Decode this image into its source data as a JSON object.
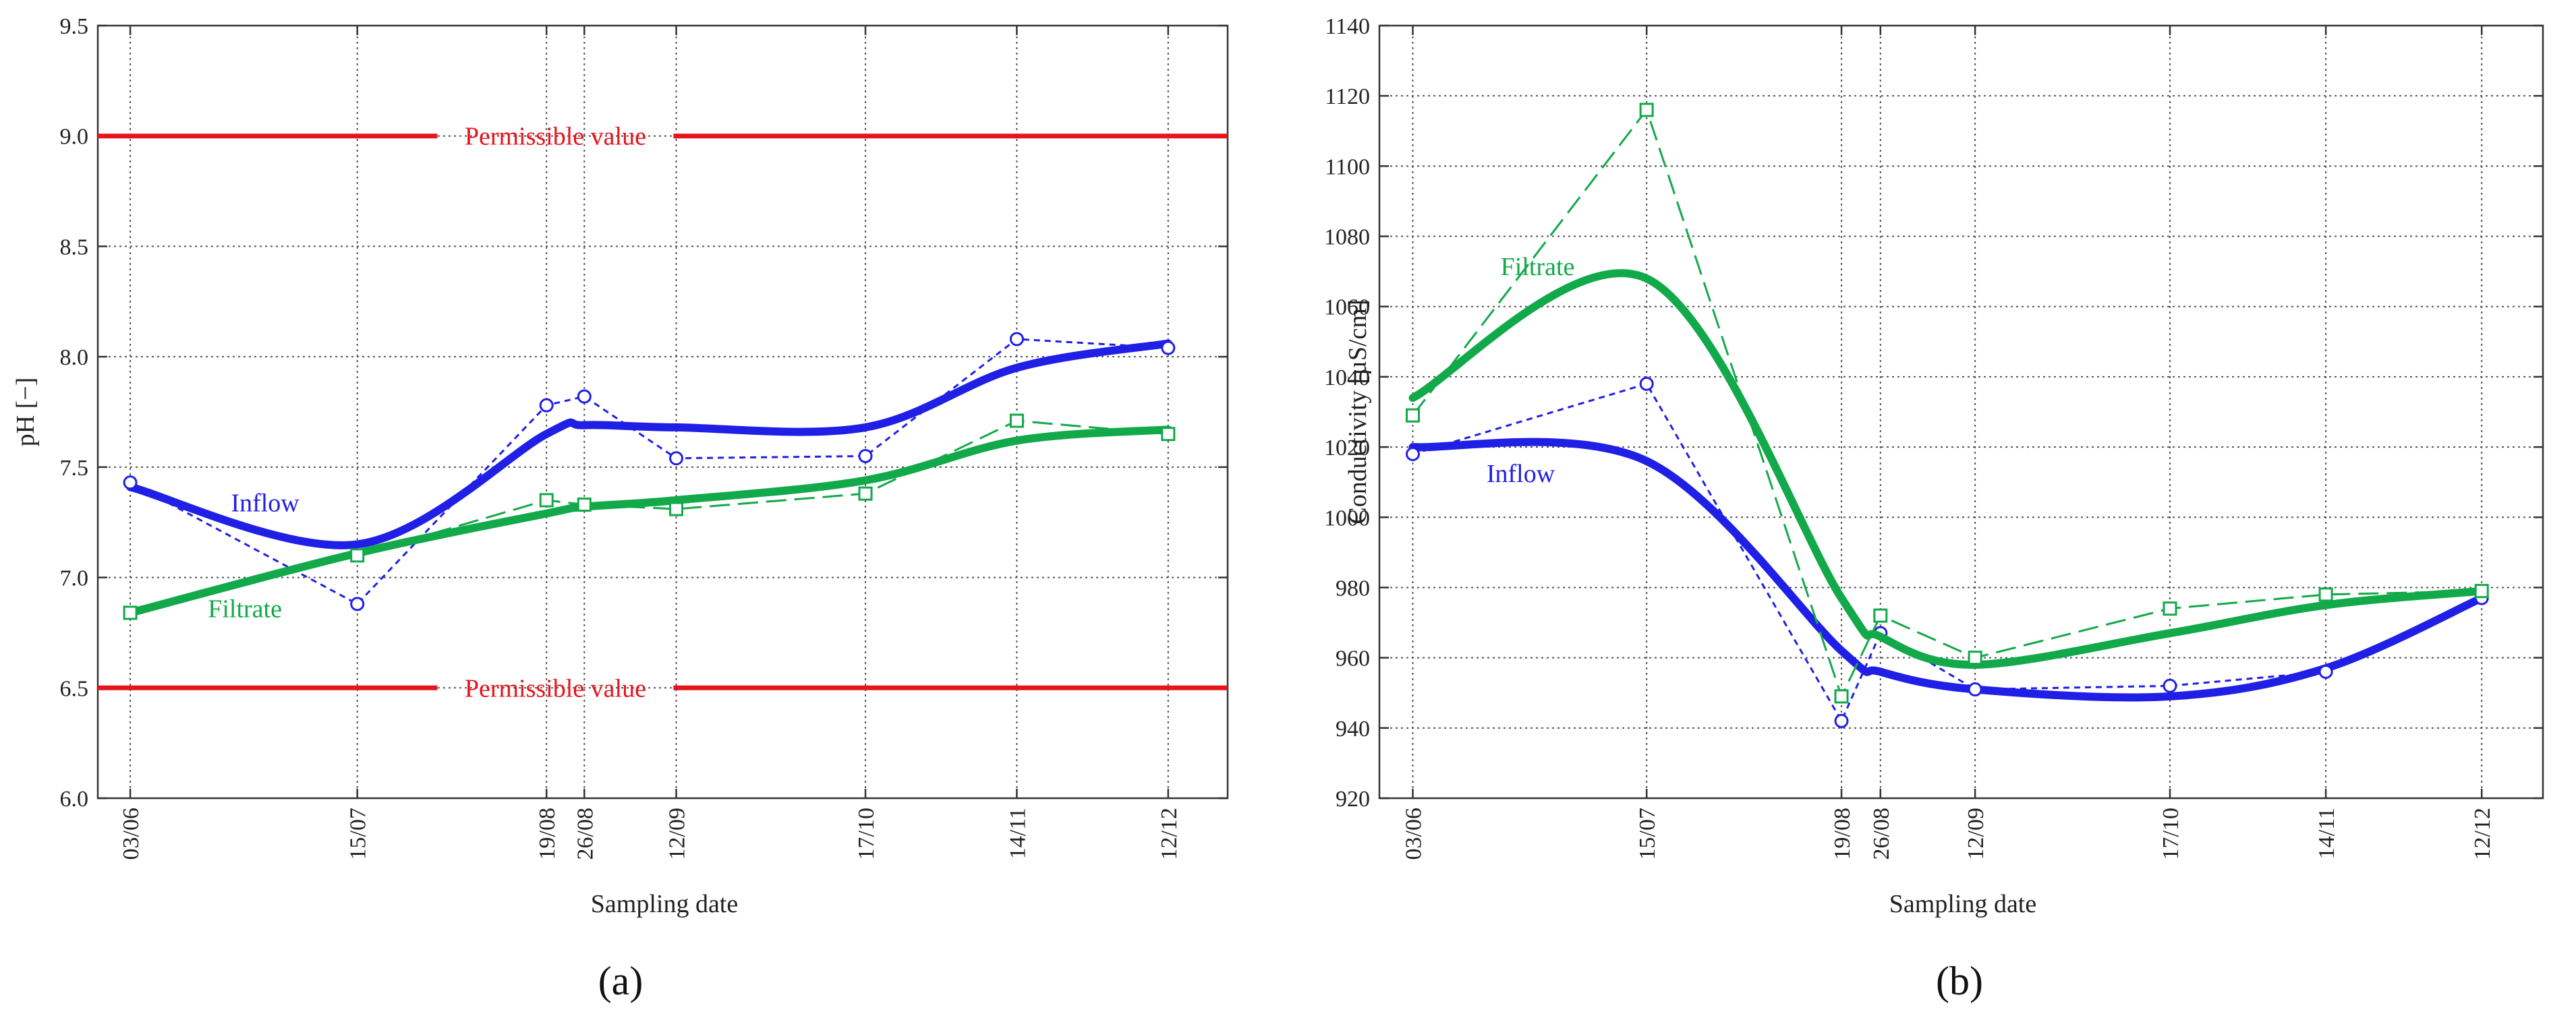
{
  "chart_data": [
    {
      "type": "line",
      "panel_label": "(a)",
      "xlabel": "Sampling date",
      "ylabel": "pH [−]",
      "ylim": [
        6.0,
        9.5
      ],
      "yticks": [
        "6.0",
        "6.5",
        "7.0",
        "7.5",
        "8.0",
        "8.5",
        "9.0",
        "9.5"
      ],
      "x": [
        "03/06",
        "15/07",
        "19/08",
        "26/08",
        "12/09",
        "17/10",
        "14/11",
        "12/12"
      ],
      "x_day_of_year": [
        154,
        196,
        231,
        238,
        255,
        290,
        318,
        346
      ],
      "grid": true,
      "colors": {
        "inflow": "#1f1fe6",
        "filtrate": "#12a94a",
        "limit": "#e8141b"
      },
      "series": [
        {
          "name": "Inflow",
          "style": "dashed-circles",
          "values": [
            7.43,
            6.88,
            7.78,
            7.82,
            7.54,
            7.55,
            8.08,
            8.04
          ],
          "trend": [
            7.41,
            7.15,
            7.65,
            7.69,
            7.68,
            7.68,
            7.95,
            8.06
          ]
        },
        {
          "name": "Filtrate",
          "style": "longdash-squares",
          "values": [
            6.84,
            7.1,
            7.35,
            7.33,
            7.31,
            7.38,
            7.71,
            7.65
          ],
          "trend": [
            6.84,
            7.11,
            7.29,
            7.32,
            7.35,
            7.44,
            7.62,
            7.67
          ]
        }
      ],
      "reference_lines": [
        {
          "label": "Permissible value",
          "value": 9.0
        },
        {
          "label": "Permissible value",
          "value": 6.5
        }
      ],
      "annotations": [
        {
          "text": "Inflow",
          "series": "Inflow"
        },
        {
          "text": "Filtrate",
          "series": "Filtrate"
        }
      ]
    },
    {
      "type": "line",
      "panel_label": "(b)",
      "xlabel": "Sampling date",
      "ylabel": "Conductivity [µS/cm]",
      "ylim": [
        920,
        1140
      ],
      "yticks": [
        "920",
        "940",
        "960",
        "980",
        "1000",
        "1020",
        "1040",
        "1060",
        "1080",
        "1100",
        "1120",
        "1140"
      ],
      "x": [
        "03/06",
        "15/07",
        "19/08",
        "26/08",
        "12/09",
        "17/10",
        "14/11",
        "12/12"
      ],
      "x_day_of_year": [
        154,
        196,
        231,
        238,
        255,
        290,
        318,
        346
      ],
      "grid": true,
      "colors": {
        "inflow": "#1f1fe6",
        "filtrate": "#12a94a"
      },
      "series": [
        {
          "name": "Inflow",
          "style": "dashed-circles",
          "values": [
            1018,
            1038,
            942,
            967,
            951,
            952,
            956,
            977
          ],
          "trend": [
            1020,
            1016,
            962,
            956,
            951,
            949,
            957,
            977
          ]
        },
        {
          "name": "Filtrate",
          "style": "longdash-squares",
          "values": [
            1029,
            1116,
            949,
            972,
            960,
            974,
            978,
            979
          ],
          "trend": [
            1034,
            1068,
            977,
            966,
            958,
            967,
            975,
            979
          ]
        }
      ],
      "annotations": [
        {
          "text": "Filtrate",
          "series": "Filtrate"
        },
        {
          "text": "Inflow",
          "series": "Inflow"
        }
      ]
    }
  ]
}
